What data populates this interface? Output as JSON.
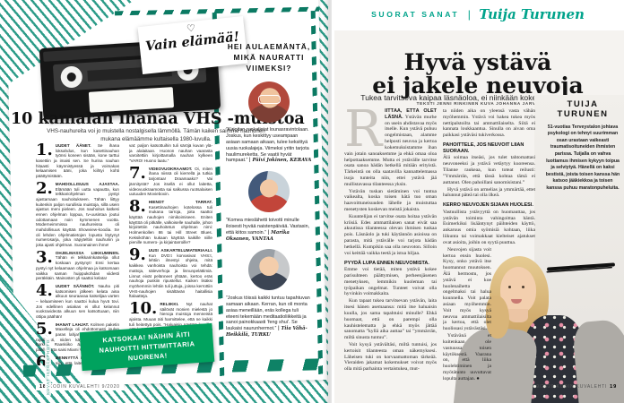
{
  "left_page": {
    "badge_heart": "♡",
    "badge_text": "Vain elämää!",
    "headline": "10 kamalan ihanaa VHS -muistoa",
    "intro": "VHS-nauhureita voi jo muistella nostalgisella lämmöllä. Tämän kaiken saimme nauhurien mukana elämäämme kultaisella 1980-luvulla.",
    "items": [
      {
        "num": "1.",
        "title": "UUDET ÄÄNET. ",
        "text": "Se ihana loksahdus, kun kasettinauhan työnsi koneen sisään, kone tarttui kasettiin ja imaisi sen. Se hurina nauhan hitaasti käynnistyessä ja voimakas kelaamisen ääni, joka kiihtyi kohti päättymistään."
      },
      {
        "num": "2.",
        "title": "MAHDOLLISUUS AJASTAA. ",
        "text": "Elämään tuli uutta vapautta, kun telkkariohjelman pystyi ajastamaan nauhoitukseen. Tähän liittyy kuitenkin paljon surullisia muistoja, sillä usein ajastus meni pieleen. Jos nauhoitus katkesi ennen ohjelman loppua, tv-uusintaa joutui odottamaan noin kymmenen vuotta. Moderneimmissa nauhureissa oli mahdollisuus käyttää Showview-koodia. Se oli lehden ohjelmatietojen lopusta löytynyt numerosarja, joka näpyteltiin nauhuriin ja joka ajasti ohjelman. Suoranainen ihme!"
      },
      {
        "num": "3.",
        "title": "OHJELMASSA LIIKKUMINEN. ",
        "text": "Tähän ei telkkarinkatselija ollut koskaan pystynyt! Ensi kertaa pystyi nyt kelaamaan ohjelmaa ja katsomaan vaikka saman huippukohdan viidesti peräkkäin. Mainosten yli saattoi kelata!"
      },
      {
        "num": "4.",
        "title": "UUDET SÄÄNNÖT. ",
        "text": "Nauha piti katsomisen jälkeen kelata aina alkuun seuraavaa katselijaa varten – kelaamiseen kun saattoi kulua hyvä tovi. Jos edellinen asiakas ei ollut kelannut vuokravideota alkuun sen katsottuaan, niin ottipa päähän!"
      },
      {
        "num": "5.",
        "title": "IHANAT LAHJAT. ",
        "text": "Kolmen paketin Maxelleja oli ehdottomasti joulun paras lahja! Koska nauhoja oli rajallisesti, niiden käyttöä piti tarkkaan harkita. Raaskiiko äänittää MacGyverin päälle, jotta saisi Miami Vicen talteen?"
      },
      {
        "num": "6.",
        "title": "MENNYTTÄ KAIKKI. ",
        "text": "Välillä kävi niin, että laite ei enää suostunut pyörittämään nauhaa: kuului vain kummaa raksutusta. Korjaamolla kerrottiin, että nauhurin sisältä oli löytynyt muun muassa voileipiä tai legoja. Myös nauhat hajosi-"
      },
      {
        "num": "7.",
        "title": "VIDEOVUOKRAAMOT. ",
        "text": "Oi, miten ihana niissä oli kierrellä ja tutkia tarjontaa! Draamaako? Vai jännitystä? Jos itsellä ei ollut laitetta, videovuokraamosta sai salkussa ruotsalaisen uutuuden Movieboxin."
      },
      {
        "num": "8.",
        "title": "HIENOT TARRAT. ",
        "text": "Kasettinauhojen kotelossa tuli mukana tarroja, joita saattoi käyttää nauhojen nimikoimiseen. Eniten käyttöä oli pitkälle, valkoiselle nauhalle, johon kirjoitettiin nauhoitetun ohjelman nimi: Holmenkollen 86 tai Hill Street Blues. Keksiköhän kukaan käyttöä kaikille niille pienille numero- ja kirjaintarroille?"
      },
      {
        "num": "9.",
        "title": "UUSI ASKARTELUMATERIAALI. ",
        "text": "Kun DVD:t korvasivat VHS:t, lehtiin ilmestyi ohjeita, mitä kaikkea vanhoista nauhoista voi tehdä: mattoja, säleverhoja ja linnunpelättimiä. Linnut eivät pelänneet yhtään, kertoo eräs nauhoja puskiin ripustellut. Kaiken lisäksi myöhemmin lehtiin tuli juttuja, joissa kerrottiin VHS-nauhojen sisältävän haitallisia ftalaatteja."
      },
      {
        "num": "10.",
        "title": "RELIIKKI. ",
        "text": "Nyt nauhat säilövät monien mielestä jo hienoja muistoja menneistä ajoista. Muuan äiti harmittelee, että ne kaikki tuli heitettyä pois. ”Haluaisin näyttää lapsille, että katsokaa, näihin äiti nauhoitti hittimittaria nuorena.”"
      }
    ],
    "column2_lead": "vat: paljon katsottuihin tuli säröjä kuvan ylä- ja alalaitaan. Huonon nauhan vaarasta varoitettiin kirjoittamalla nauhan kylkeen ”VARO! Huono laatu.”",
    "attribution": "– ARJA KUITTINEN",
    "banner_lines": [
      "KATSOKAA! NÄIHIN ÄITI",
      "NAUHOITTI HITTIMITTARIA",
      "NUORENA!"
    ],
    "footer": {
      "page": "18",
      "text": "KODIN KUVALEHTI 9/2020"
    },
    "vertical_credit": "KUVAT ISTOCKPHOTO",
    "sidebar": {
      "title_lines": [
        "HEI AULAEMÄNTÄ,",
        "MIKÄ NAURATTI",
        "VIIMEKSI?"
      ],
      "quotes": [
        {
          "text": "”Kirjoitan ruokalistat lounasravintolaan. Joskus, kun keskittyy useampaan asiaan samaan aikaan, tulee keksittyä uusia ruokalajeja. Viimeksi yritin tarjota haulimureketta. Se vaatii hyvät hampaat.” ",
          "author": "| Päivi Jokinen, KERAVA"
        },
        {
          "text": "”Komea mieslähetti toivotti minulle iloisesti hyvää naistenpäivää. Vastasin, että kiitos samoin.” ",
          "author": "| Marika Oksanen, VANTAA"
        },
        {
          "text": "”Joskus töissä kaikki tuntuu tapahtuvan samaan aikaan. Kerran, kun oli monta asiaa meneillään, eräs kollega tuli eteeni tekemään meditaatioliikkeitä ja sanoi painokkaasti ’feng shui’. Se laukaisi naurunhermot.” ",
          "author": "| Tiia Vähä-Heikkilä, TURKU"
        }
      ]
    }
  },
  "right_page": {
    "kicker": "SUORAT SANAT",
    "kicker_separator": "|",
    "kicker_author": "Tuija Turunen",
    "headline_lines": [
      "Hyvä ystävä",
      "ei jakele neuvoja"
    ],
    "subtitle": "Tukea tarvitseva kaipaa läsnäoloa, ei niinkään kokemusten vertailua.",
    "byline": "TEKSTI JENNI RINKINEN  KUVA JOHANNA JARVA",
    "article": {
      "dropcap": "R",
      "lead_in": "IITTÄÄ, ETTÄ OLET LÄSNÄ.",
      "lead_rest": " Ystävän murhe on usein ahdistavaa myös itselle. Kun ystävä puhuu ongelmistaan, alamme helposti neuvoa ja kertoa kokemuksistamme ihan vain jotain sanoaksemme ja ehkä omaa oloa helpottaaksemme. Mutta ei ystävälle tarvitse osata sanoa hädän hetkellä mitään erityistä. Tärkeintä on olla saatavilla kannattelemassa isoja tunteita niin, ettei ystävä jää mullistavassa tilanteessa yksin.",
      "p2": "Ystävän tuskan sietäminen voi tuntua vaikealta, koska toisen hätä tuo oman haavoittuneisuuden lähelle ja muistuttaa menetysten koskevan meistä jokaista.",
      "p3": "Kuuntelijan ei tarvitse osata hoitaa ystävän kriisiä. Edes ammattilaisen sanat eivät saa akuutissa tilanteessa olevan ihmisen tuskaa pois. Läsnäolo ja tuki käytännön asioissa on parasta, mitä ystävälle voi tarjota hädän hetkellä. Kumpikin saa olla neuvoton. Silloin voi keittää vaikka teetä ja istua hiljaa.",
      "h1": "PYYDÄ LUPA ENNEN NEUVOMISTA.",
      "p4": "Emme voi tietää, miten ystävä kokee parisuhteen päättymisen, perheenjäsenen menetyksen, lemmikin kuoleman tai työpaikan ongelmat. Tunteet voivat olla hyvinkin voimakkaita.",
      "p5": "Kun tapaat tukea tarvitsevan ystävän, laita itsesi hänen asemaansa: mitä itse haluaisin kuulla, jos sama tapahtuisi minulle? Ehkä huomaat, että on parempi olla kauhistelematta ja ehkä myös jättää sanomatta ”kyllä aika auttaa” tai ”ymmärrän, miltä sinusta tuntuu”.",
      "p6": "Voit kysyä ystävältäsi, miltä tuntuisi, jos kertoisit tilanteesta oman näkemyksesi. Läheisen tuki on korvaamattoman tärkeää. Vieraiden jakamat kokemukset voivat myös olla mitä parhainta vertaistukea, mut-",
      "p7": "ta niiden aika on yleensä vasta vähän myöhemmin. Ystävä voi hakea tukea myös nettipalstoilta tai ammattilaiselta. Siitä ei kannata loukkaantua. Sinulla on aivan oma paikkasi ystäväsi tukiverkossa.",
      "h2": "PAHOITTELE, JOS NEUVOIT LIIAN SUORAAN.",
      "p8": "Älä soimaa itseäsi, jos tulet tahtomattasi neuvoneeksi ja ystävä vetäytyy kuoreensa. Tilanne raukeaa, kun toteat reilusti: ”Ymmärrän, että tässä kohtaa tämä ei auttanut. Olen pahoillani sanomisistani.”",
      "p9": "Hyvä ystävä on armelias ja ymmärtää, ettet halunnut päteä tai olla ilkeä.",
      "h3": "KERRO NEUVOJEN SIJAAN HUOLESI.",
      "p10": "Vastuullista ystävyyttä on huomauttaa, jos ystävän toiminta vahingoittaa häntä. Esimerkiksi lisääntynyt päihteiden käyttö, ankaruus omia syömisiä kohtaan, liika liikunta tai voimakkaat kielteiset ajatukset ovat asioita, joihin on syytä puuttua.",
      "p11": "Neuvojen sijasta voit kertoa ensin huolesi. Kysy, onko ystävä itse huomannut muutoksen. Älä hermostu, jos ystävä ei koe huolenaihetta ongelmaksi tai halua kuunnella. Voit palata asiaan myöhemmin. Voit myös kysyä neuvoa ammattilaisilta ja kertoa, että olet huolissasi ystävästäsi.",
      "p12": "Ystävänä et kuitenkaan ole vastuussa toisen käytöksestä. Vaarana on, että liika huolehtiminen ja myötätunto uuvuttavat lopulta auttajan. ●"
    },
    "bio": {
      "name_lines": [
        "TUIJA",
        "TURUNEN"
      ],
      "text": "51-vuotias Terveystalon johtava psykologi on tehnyt suurimman osan urastaan vaikeasti traumatisoituneiden ihmisten parissa. Tuijalla on vahva luottamus ihmisen kykyyn toipua ja selviytyä. Hänellä on kaksi bestistä, joista toisen kanssa hän katsoo jääkiekkoa ja toisen kanssa puhuu maratonpuheluita."
    },
    "footer": {
      "text": "9/2020 KODIN KUVALEHTI",
      "page": "19"
    }
  },
  "colors": {
    "teal_stripe": "#2e9c89",
    "teal_dash": "#0b7a63",
    "kicker_teal": "#00a38b",
    "banner_green": "#00a25e"
  }
}
